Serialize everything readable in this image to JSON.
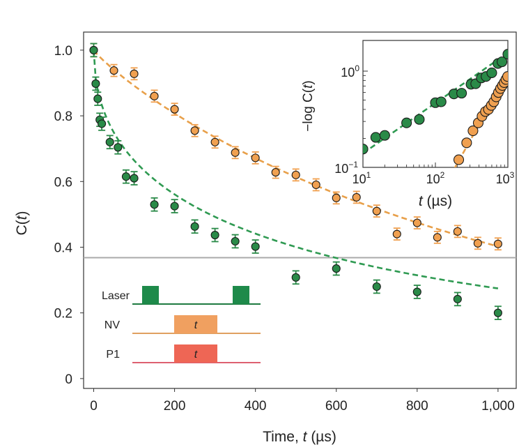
{
  "chart_data": {
    "type": "scatter",
    "ylabel": "C(t)",
    "xlabel": "Time, t (µs)",
    "xlim": [
      -25,
      1045
    ],
    "ylim": [
      -0.03,
      1.055
    ],
    "x_ticks": [
      0,
      200,
      400,
      600,
      800,
      1000
    ],
    "x_tick_labels": [
      "0",
      "200",
      "400",
      "600",
      "800",
      "1,000"
    ],
    "y_ticks": [
      0,
      0.2,
      0.4,
      0.6,
      0.8,
      1.0
    ],
    "y_tick_labels": [
      "0",
      "0.2",
      "0.4",
      "0.6",
      "0.8",
      "1.0"
    ],
    "reference_line_y": 0.368,
    "series": [
      {
        "name": "orange",
        "color": "#f0a050",
        "fit_color": "#e8a04a",
        "x": [
          0,
          50,
          100,
          150,
          200,
          250,
          300,
          350,
          400,
          450,
          500,
          550,
          600,
          650,
          700,
          750,
          800,
          850,
          900,
          950,
          1000
        ],
        "y": [
          1.0,
          0.938,
          0.928,
          0.86,
          0.82,
          0.755,
          0.72,
          0.688,
          0.672,
          0.628,
          0.62,
          0.59,
          0.55,
          0.552,
          0.51,
          0.44,
          0.474,
          0.43,
          0.448,
          0.412,
          0.41
        ],
        "err": [
          0.02,
          0.018,
          0.018,
          0.018,
          0.018,
          0.018,
          0.018,
          0.018,
          0.018,
          0.018,
          0.018,
          0.018,
          0.018,
          0.018,
          0.018,
          0.018,
          0.018,
          0.018,
          0.018,
          0.018,
          0.018
        ]
      },
      {
        "name": "green",
        "color": "#2a8a48",
        "fit_color": "#2f9a52",
        "x": [
          0,
          5,
          10,
          15,
          20,
          40,
          60,
          80,
          100,
          150,
          200,
          250,
          300,
          350,
          400,
          500,
          600,
          700,
          800,
          900,
          1000
        ],
        "y": [
          1.0,
          0.898,
          0.852,
          0.788,
          0.776,
          0.72,
          0.704,
          0.615,
          0.61,
          0.53,
          0.525,
          0.463,
          0.437,
          0.418,
          0.402,
          0.308,
          0.335,
          0.28,
          0.264,
          0.242,
          0.2
        ],
        "err": [
          0.02,
          0.02,
          0.02,
          0.02,
          0.02,
          0.02,
          0.02,
          0.02,
          0.02,
          0.02,
          0.02,
          0.02,
          0.02,
          0.02,
          0.02,
          0.02,
          0.02,
          0.02,
          0.02,
          0.02,
          0.02
        ]
      }
    ],
    "inset": {
      "type": "scatter",
      "xscale": "log",
      "yscale": "log",
      "xlabel": "t (µs)",
      "ylabel": "−log C(t)",
      "xlim": [
        10,
        1000
      ],
      "ylim": [
        0.1,
        1.6
      ],
      "x_tick_labels": [
        {
          "base": "10",
          "exp": "1"
        },
        {
          "base": "10",
          "exp": "2"
        },
        {
          "base": "10",
          "exp": "3"
        }
      ],
      "y_tick_labels": [
        {
          "base": "10",
          "exp": "0"
        },
        {
          "base": "10",
          "exp": "−1"
        }
      ],
      "series": [
        {
          "name": "green",
          "x": [
            10,
            15,
            20,
            40,
            60,
            100,
            120,
            180,
            230,
            310,
            360,
            430,
            500,
            600,
            730,
            830,
            1000
          ],
          "y": [
            0.155,
            0.205,
            0.215,
            0.29,
            0.315,
            0.47,
            0.48,
            0.58,
            0.59,
            0.73,
            0.74,
            0.85,
            0.88,
            0.96,
            1.2,
            1.25,
            1.5
          ]
        },
        {
          "name": "orange",
          "x": [
            210,
            270,
            330,
            390,
            440,
            490,
            540,
            590,
            640,
            690,
            740,
            790,
            840,
            890,
            940,
            990
          ],
          "y": [
            0.12,
            0.18,
            0.24,
            0.29,
            0.34,
            0.38,
            0.4,
            0.44,
            0.48,
            0.54,
            0.6,
            0.66,
            0.71,
            0.76,
            0.82,
            0.88
          ]
        }
      ]
    },
    "pulse_diagram": {
      "rows": [
        {
          "label": "Laser",
          "color": "#1e8a4a",
          "line_color": "#1e7a40"
        },
        {
          "label": "NV",
          "color": "#f0a060",
          "line_color": "#e0a060",
          "pulse_label": "t"
        },
        {
          "label": "P1",
          "color": "#ee6655",
          "line_color": "#dd6070",
          "pulse_label": "t"
        }
      ]
    }
  }
}
